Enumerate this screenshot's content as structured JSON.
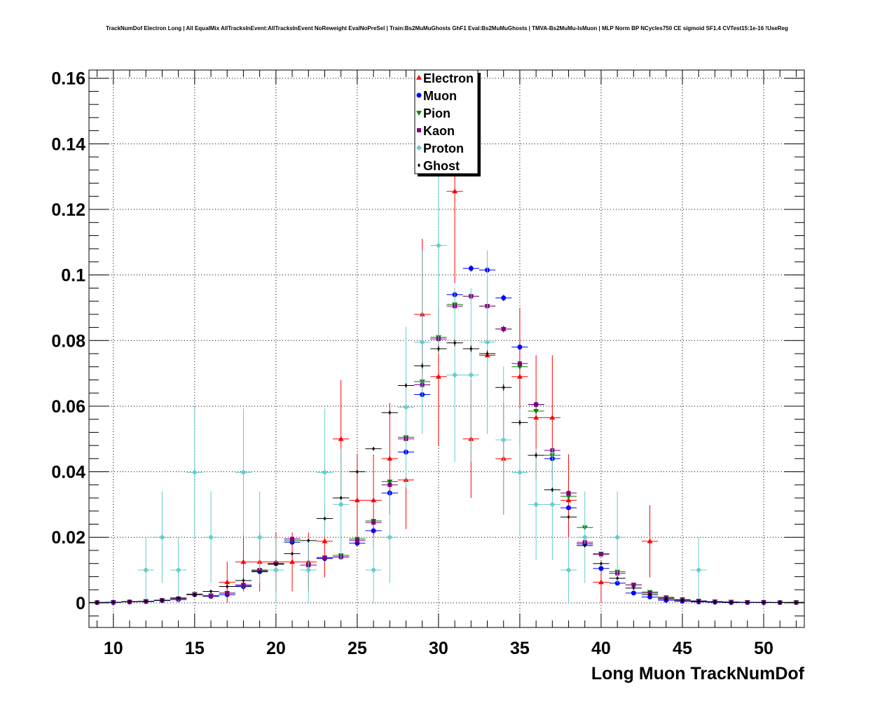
{
  "chart_data": {
    "type": "scatter",
    "title": "TrackNumDof Electron Long | All EqualMix AllTracksInEvent:AllTracksInEvent NoReweight EvalNoPreSel | Train:Bs2MuMuGhosts GhF1 Eval:Bs2MuMuGhosts | TMVA-Bs2MuMu-IsMuon | MLP Norm BP NCycles750 CE sigmoid SF1.4 CVTest15:1e-16 !UseReg",
    "xlabel": "Long Muon TrackNumDof",
    "ylabel": "",
    "xlim": [
      8.5,
      52.5
    ],
    "ylim": [
      -0.0075,
      0.1625
    ],
    "x_ticks": [
      10,
      15,
      20,
      25,
      30,
      35,
      40,
      45,
      50
    ],
    "x_tick_labels": [
      "10",
      "15",
      "20",
      "25",
      "30",
      "35",
      "40",
      "45",
      "50"
    ],
    "y_ticks": [
      0,
      0.02,
      0.04,
      0.06,
      0.08,
      0.1,
      0.12,
      0.14,
      0.16
    ],
    "y_tick_labels": [
      "0",
      "0.02",
      "0.04",
      "0.06",
      "0.08",
      "0.1",
      "0.12",
      "0.14",
      "0.16"
    ],
    "grid": true,
    "legend_position": "top-center",
    "series": [
      {
        "name": "Electron",
        "color": "#ff0000",
        "marker": "triangle-up",
        "x": [
          17,
          18,
          19,
          20,
          21,
          22,
          23,
          24,
          25,
          26,
          27,
          28,
          29,
          30,
          31,
          32,
          33,
          34,
          35,
          36,
          37,
          38,
          40,
          43
        ],
        "y": [
          0.0063,
          0.0125,
          0.0125,
          0.0125,
          0.0125,
          0.0125,
          0.0188,
          0.05,
          0.0313,
          0.0313,
          0.044,
          0.0375,
          0.088,
          0.069,
          0.1255,
          0.05,
          0.0755,
          0.044,
          0.069,
          0.0565,
          0.0565,
          0.0313,
          0.0063,
          0.0188
        ],
        "err": [
          0.0063,
          0.009,
          0.009,
          0.009,
          0.009,
          0.009,
          0.011,
          0.018,
          0.014,
          0.014,
          0.017,
          0.015,
          0.023,
          0.021,
          0.028,
          0.018,
          0.022,
          0.017,
          0.021,
          0.019,
          0.019,
          0.014,
          0.0063,
          0.011
        ]
      },
      {
        "name": "Muon",
        "color": "#0000ff",
        "marker": "circle",
        "x": [
          9,
          10,
          11,
          12,
          13,
          14,
          15,
          16,
          17,
          18,
          19,
          20,
          21,
          22,
          23,
          24,
          25,
          26,
          27,
          28,
          29,
          30,
          31,
          32,
          33,
          34,
          35,
          36,
          37,
          38,
          39,
          40,
          41,
          42,
          43,
          44,
          45,
          46,
          47,
          48,
          49,
          50,
          51,
          52
        ],
        "y": [
          0.0001,
          0.0001,
          0.0003,
          0.0004,
          0.0007,
          0.001,
          0.0025,
          0.002,
          0.0025,
          0.005,
          0.0095,
          0.012,
          0.0185,
          0.0115,
          0.0135,
          0.014,
          0.0182,
          0.022,
          0.0335,
          0.046,
          0.0635,
          0.0805,
          0.094,
          0.102,
          0.1015,
          0.093,
          0.078,
          0.0605,
          0.044,
          0.029,
          0.018,
          0.0105,
          0.006,
          0.003,
          0.0018,
          0.0008,
          0.0005,
          0.0003,
          0.0002,
          0.0001,
          0.0001,
          0.0001,
          0.0001,
          0.0001
        ],
        "err": [
          0.0001,
          0.0001,
          0.0001,
          0.0001,
          0.0001,
          0.0002,
          0.0002,
          0.0002,
          0.0002,
          0.0003,
          0.0004,
          0.0004,
          0.0005,
          0.0004,
          0.0004,
          0.0004,
          0.0005,
          0.0005,
          0.0006,
          0.0007,
          0.0008,
          0.0009,
          0.001,
          0.001,
          0.001,
          0.001,
          0.0009,
          0.0008,
          0.0007,
          0.0006,
          0.0004,
          0.0003,
          0.0003,
          0.0002,
          0.0002,
          0.0001,
          0.0001,
          0.0001,
          0.0001,
          0.0001,
          0.0001,
          0.0001,
          0.0001,
          0.0001
        ]
      },
      {
        "name": "Pion",
        "color": "#008000",
        "marker": "triangle-down",
        "x": [
          9,
          10,
          11,
          12,
          13,
          14,
          15,
          16,
          17,
          18,
          19,
          20,
          21,
          22,
          23,
          24,
          25,
          26,
          27,
          28,
          29,
          30,
          31,
          32,
          33,
          34,
          35,
          36,
          37,
          38,
          39,
          40,
          41,
          42,
          43,
          44,
          45,
          46,
          47,
          48,
          49,
          50,
          51,
          52
        ],
        "y": [
          0.0001,
          0.0002,
          0.0003,
          0.0005,
          0.0008,
          0.0013,
          0.0027,
          0.0022,
          0.003,
          0.0052,
          0.0098,
          0.0118,
          0.019,
          0.0115,
          0.0138,
          0.0145,
          0.0195,
          0.025,
          0.037,
          0.0505,
          0.0675,
          0.081,
          0.091,
          0.0935,
          0.0905,
          0.0835,
          0.072,
          0.0585,
          0.045,
          0.0325,
          0.023,
          0.015,
          0.0095,
          0.0055,
          0.0033,
          0.0017,
          0.001,
          0.0006,
          0.0004,
          0.0003,
          0.0002,
          0.0002,
          0.0001,
          0.0002
        ],
        "err": [
          0.0001,
          0.0001,
          0.0001,
          0.0001,
          0.0001,
          0.0002,
          0.0002,
          0.0002,
          0.0002,
          0.0003,
          0.0004,
          0.0004,
          0.0005,
          0.0004,
          0.0004,
          0.0004,
          0.0005,
          0.0005,
          0.0006,
          0.0007,
          0.0008,
          0.0009,
          0.001,
          0.001,
          0.001,
          0.001,
          0.0009,
          0.0008,
          0.0007,
          0.0006,
          0.0004,
          0.0003,
          0.0003,
          0.0002,
          0.0002,
          0.0001,
          0.0001,
          0.0001,
          0.0001,
          0.0001,
          0.0001,
          0.0001,
          0.0001,
          0.0001
        ]
      },
      {
        "name": "Kaon",
        "color": "#800080",
        "marker": "square",
        "x": [
          9,
          10,
          11,
          12,
          13,
          14,
          15,
          16,
          17,
          18,
          19,
          20,
          21,
          22,
          23,
          24,
          25,
          26,
          27,
          28,
          29,
          30,
          31,
          32,
          33,
          34,
          35,
          36,
          37,
          38,
          39,
          40,
          41,
          42,
          43,
          44,
          45,
          46,
          47,
          48,
          49,
          50,
          51,
          52
        ],
        "y": [
          0.0001,
          0.0002,
          0.0003,
          0.0005,
          0.0008,
          0.0013,
          0.0026,
          0.0022,
          0.003,
          0.0055,
          0.01,
          0.012,
          0.0195,
          0.0115,
          0.0138,
          0.014,
          0.019,
          0.0245,
          0.036,
          0.05,
          0.0665,
          0.0805,
          0.0905,
          0.0935,
          0.0905,
          0.0835,
          0.073,
          0.0605,
          0.0465,
          0.0335,
          0.0185,
          0.0148,
          0.009,
          0.0055,
          0.003,
          0.0015,
          0.001,
          0.0006,
          0.0004,
          0.0003,
          0.0002,
          0.0002,
          0.0001,
          0.0001
        ],
        "err": [
          0.0001,
          0.0001,
          0.0001,
          0.0001,
          0.0001,
          0.0002,
          0.0002,
          0.0002,
          0.0002,
          0.0003,
          0.0004,
          0.0004,
          0.0005,
          0.0004,
          0.0004,
          0.0004,
          0.0005,
          0.0005,
          0.0006,
          0.0007,
          0.0008,
          0.0009,
          0.001,
          0.001,
          0.001,
          0.001,
          0.0009,
          0.0008,
          0.0007,
          0.0006,
          0.0004,
          0.0003,
          0.0003,
          0.0002,
          0.0002,
          0.0001,
          0.0001,
          0.0001,
          0.0001,
          0.0001,
          0.0001,
          0.0001,
          0.0001,
          0.0001
        ]
      },
      {
        "name": "Proton",
        "color": "#66cccc",
        "marker": "diamond",
        "x": [
          12,
          13,
          14,
          15,
          16,
          18,
          19,
          20,
          22,
          23,
          24,
          26,
          27,
          28,
          29,
          30,
          31,
          32,
          33,
          34,
          35,
          36,
          37,
          38,
          39,
          41,
          46
        ],
        "y": [
          0.01,
          0.02,
          0.01,
          0.0398,
          0.02,
          0.0398,
          0.02,
          0.01,
          0.01,
          0.0398,
          0.03,
          0.01,
          0.02,
          0.0597,
          0.0795,
          0.109,
          0.0695,
          0.0695,
          0.0795,
          0.0497,
          0.0398,
          0.03,
          0.03,
          0.01,
          0.02,
          0.02,
          0.01
        ],
        "err": [
          0.01,
          0.014,
          0.01,
          0.02,
          0.014,
          0.0195,
          0.014,
          0.01,
          0.01,
          0.0195,
          0.017,
          0.01,
          0.014,
          0.0245,
          0.028,
          0.033,
          0.0265,
          0.0265,
          0.028,
          0.0225,
          0.0195,
          0.017,
          0.017,
          0.01,
          0.014,
          0.014,
          0.01
        ]
      },
      {
        "name": "Ghost",
        "color": "#000000",
        "marker": "star",
        "x": [
          9,
          10,
          11,
          12,
          13,
          14,
          15,
          16,
          17,
          18,
          19,
          20,
          21,
          22,
          23,
          24,
          25,
          26,
          27,
          28,
          29,
          30,
          31,
          32,
          33,
          34,
          35,
          36,
          37,
          38,
          39,
          40,
          41,
          42,
          43,
          44,
          45,
          46,
          47,
          48,
          49,
          50,
          51,
          52
        ],
        "y": [
          0.0001,
          0.0002,
          0.0004,
          0.0005,
          0.0008,
          0.0015,
          0.0025,
          0.0035,
          0.005,
          0.0068,
          0.0095,
          0.0118,
          0.015,
          0.019,
          0.0257,
          0.032,
          0.04,
          0.047,
          0.058,
          0.0663,
          0.0723,
          0.0775,
          0.0793,
          0.0775,
          0.076,
          0.0657,
          0.055,
          0.045,
          0.0345,
          0.0262,
          0.0175,
          0.012,
          0.0075,
          0.0045,
          0.0025,
          0.0012,
          0.0008,
          0.0005,
          0.0003,
          0.0002,
          0.0002,
          0.0001,
          0.0001,
          0.0001
        ],
        "err": [
          0.0001,
          0.0001,
          0.0001,
          0.0001,
          0.0001,
          0.0002,
          0.0002,
          0.0002,
          0.0002,
          0.0003,
          0.0004,
          0.0004,
          0.0005,
          0.0004,
          0.0004,
          0.0004,
          0.0005,
          0.0005,
          0.0006,
          0.0007,
          0.0008,
          0.0009,
          0.001,
          0.001,
          0.001,
          0.001,
          0.0009,
          0.0008,
          0.0007,
          0.0006,
          0.0004,
          0.0003,
          0.0003,
          0.0002,
          0.0002,
          0.0001,
          0.0001,
          0.0001,
          0.0001,
          0.0001,
          0.0001,
          0.0001,
          0.0001,
          0.0001
        ]
      }
    ]
  }
}
